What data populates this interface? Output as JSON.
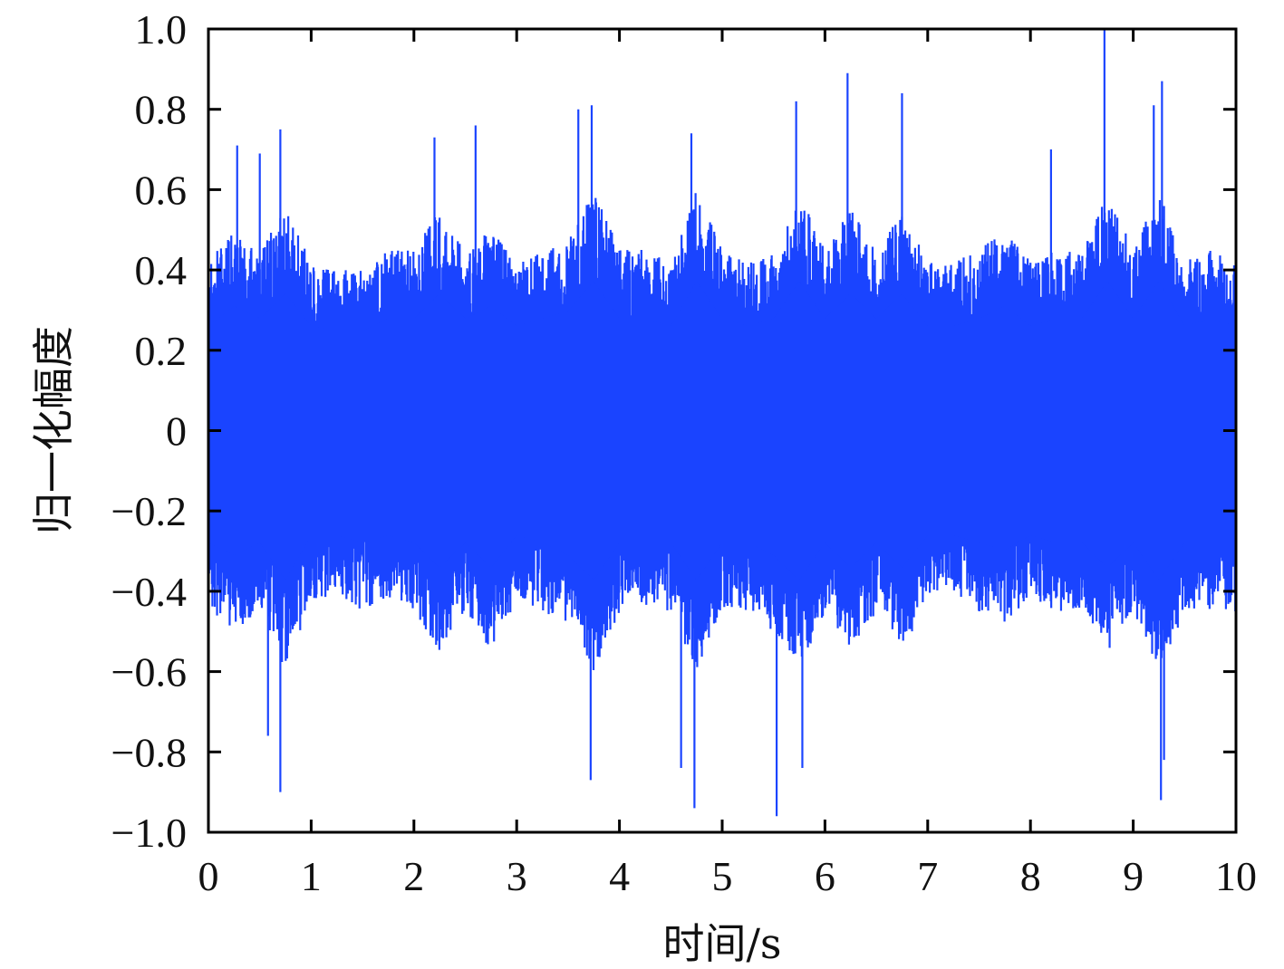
{
  "chart_data": {
    "type": "line",
    "title": "",
    "xlabel": "时间/s",
    "ylabel": "归一化幅度",
    "xlim": [
      0,
      10
    ],
    "ylim": [
      -1.0,
      1.0
    ],
    "x_ticks": [
      0,
      1,
      2,
      3,
      4,
      5,
      6,
      7,
      8,
      9,
      10
    ],
    "x_tick_labels": [
      "0",
      "1",
      "2",
      "3",
      "4",
      "5",
      "6",
      "7",
      "8",
      "9",
      "10"
    ],
    "y_ticks": [
      -1.0,
      -0.8,
      -0.6,
      -0.4,
      -0.2,
      0,
      0.2,
      0.4,
      0.6,
      0.8,
      1.0
    ],
    "y_tick_labels": [
      "−1.0",
      "−0.8",
      "−0.6",
      "−0.4",
      "−0.2",
      "0",
      "0.2",
      "0.4",
      "0.6",
      "0.8",
      "1.0"
    ],
    "grid": false,
    "legend": "none",
    "series": [
      {
        "color": "#1a44ff",
        "envelope": {
          "x": [
            0.0,
            0.25,
            0.5,
            0.75,
            1.0,
            1.25,
            1.5,
            1.75,
            2.0,
            2.25,
            2.5,
            2.75,
            3.0,
            3.25,
            3.5,
            3.75,
            4.0,
            4.25,
            4.5,
            4.75,
            5.0,
            5.25,
            5.5,
            5.75,
            6.0,
            6.25,
            6.5,
            6.75,
            7.0,
            7.25,
            7.5,
            7.75,
            8.0,
            8.25,
            8.5,
            8.75,
            9.0,
            9.25,
            9.5,
            9.75,
            10.0
          ],
          "typical_max": [
            0.42,
            0.5,
            0.45,
            0.55,
            0.42,
            0.4,
            0.4,
            0.45,
            0.45,
            0.55,
            0.45,
            0.5,
            0.42,
            0.45,
            0.48,
            0.6,
            0.45,
            0.45,
            0.42,
            0.6,
            0.45,
            0.42,
            0.45,
            0.6,
            0.45,
            0.55,
            0.45,
            0.55,
            0.42,
            0.42,
            0.45,
            0.5,
            0.42,
            0.45,
            0.45,
            0.6,
            0.45,
            0.6,
            0.42,
            0.45,
            0.42
          ],
          "typical_min": [
            -0.45,
            -0.5,
            -0.45,
            -0.6,
            -0.42,
            -0.42,
            -0.45,
            -0.42,
            -0.45,
            -0.55,
            -0.45,
            -0.55,
            -0.42,
            -0.45,
            -0.5,
            -0.6,
            -0.45,
            -0.45,
            -0.45,
            -0.6,
            -0.45,
            -0.45,
            -0.5,
            -0.6,
            -0.45,
            -0.55,
            -0.45,
            -0.55,
            -0.42,
            -0.42,
            -0.45,
            -0.48,
            -0.42,
            -0.45,
            -0.45,
            -0.55,
            -0.45,
            -0.6,
            -0.45,
            -0.45,
            -0.45
          ]
        },
        "peaks": [
          {
            "x": 0.28,
            "y": 0.71
          },
          {
            "x": 0.5,
            "y": 0.69
          },
          {
            "x": 0.7,
            "y": 0.75
          },
          {
            "x": 2.2,
            "y": 0.73
          },
          {
            "x": 2.6,
            "y": 0.76
          },
          {
            "x": 3.6,
            "y": 0.8
          },
          {
            "x": 3.73,
            "y": 0.81
          },
          {
            "x": 4.7,
            "y": 0.74
          },
          {
            "x": 5.72,
            "y": 0.82
          },
          {
            "x": 6.22,
            "y": 0.89
          },
          {
            "x": 6.75,
            "y": 0.84
          },
          {
            "x": 8.2,
            "y": 0.7
          },
          {
            "x": 8.72,
            "y": 1.0
          },
          {
            "x": 9.2,
            "y": 0.81
          },
          {
            "x": 9.28,
            "y": 0.87
          },
          {
            "x": 0.7,
            "y": -0.9
          },
          {
            "x": 0.58,
            "y": -0.76
          },
          {
            "x": 3.72,
            "y": -0.87
          },
          {
            "x": 4.6,
            "y": -0.84
          },
          {
            "x": 4.73,
            "y": -0.94
          },
          {
            "x": 5.53,
            "y": -0.96
          },
          {
            "x": 5.78,
            "y": -0.84
          },
          {
            "x": 9.27,
            "y": -0.92
          },
          {
            "x": 9.3,
            "y": -0.82
          }
        ]
      }
    ]
  }
}
